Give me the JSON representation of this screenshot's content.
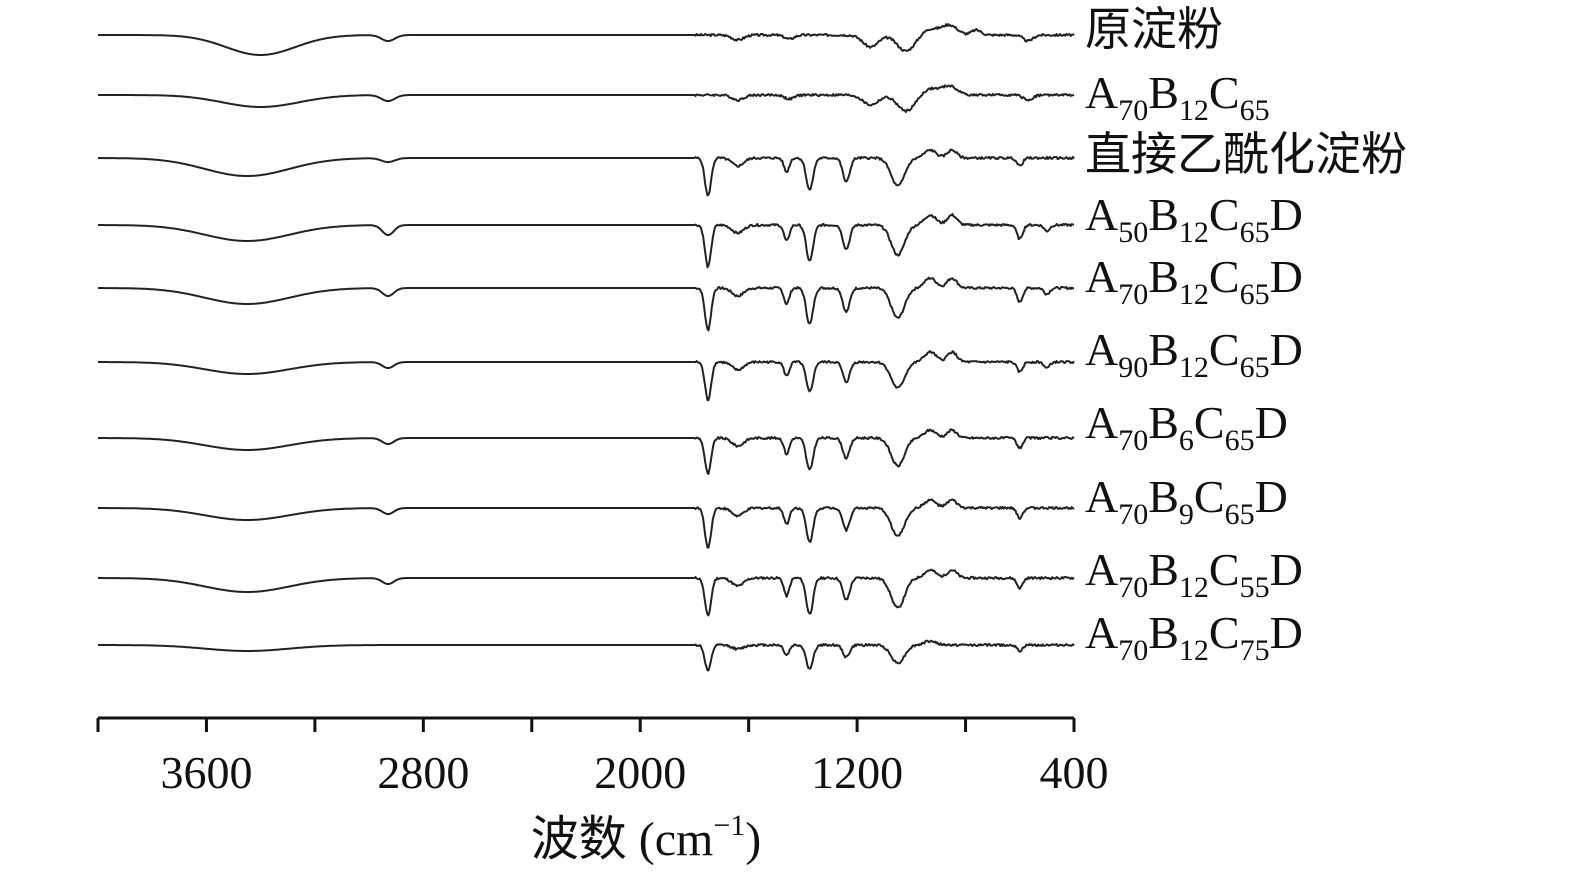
{
  "chart_data": {
    "type": "line",
    "title": "",
    "xlabel": {
      "text": "波数 (cm",
      "sup": "−1",
      "close": ")"
    },
    "ylabel": "",
    "xlim": [
      4000,
      400
    ],
    "x_reversed": true,
    "x_ticks_labeled": [
      3600,
      2800,
      2000,
      1200,
      400
    ],
    "x_ticks_minor": [
      4000,
      3200,
      2400,
      1600,
      800
    ],
    "grid": false,
    "legend": "inline-right",
    "series": [
      {
        "label": [
          {
            "t": "原淀粉"
          }
        ],
        "label_text": "原淀粉",
        "baseline": 0.0,
        "features": [
          [
            3400,
            -20,
            180
          ],
          [
            2930,
            -6,
            35
          ],
          [
            1640,
            -5,
            30
          ],
          [
            1450,
            -4,
            25
          ],
          [
            1150,
            -12,
            40
          ],
          [
            1020,
            -16,
            45
          ],
          [
            930,
            6,
            40
          ],
          [
            860,
            10,
            40
          ],
          [
            760,
            5,
            25
          ],
          [
            570,
            -6,
            25
          ]
        ]
      },
      {
        "label": [
          {
            "t": "A"
          },
          {
            "t": "70",
            "s": "sub"
          },
          {
            "t": "B"
          },
          {
            "t": "12",
            "s": "sub"
          },
          {
            "t": "C"
          },
          {
            "t": "65",
            "s": "sub"
          }
        ],
        "label_text": "A70B12C65",
        "baseline": 0.0,
        "features": [
          [
            3400,
            -12,
            200
          ],
          [
            2930,
            -6,
            35
          ],
          [
            1640,
            -5,
            30
          ],
          [
            1450,
            -4,
            25
          ],
          [
            1150,
            -10,
            40
          ],
          [
            1020,
            -16,
            45
          ],
          [
            930,
            6,
            40
          ],
          [
            860,
            9,
            40
          ],
          [
            570,
            -5,
            25
          ]
        ]
      },
      {
        "label": [
          {
            "t": "直接乙酰化淀粉"
          }
        ],
        "label_text": "直接乙酰化淀粉",
        "baseline": 0.0,
        "features": [
          [
            3450,
            -18,
            220
          ],
          [
            2930,
            -4,
            35
          ],
          [
            1750,
            -38,
            16
          ],
          [
            1640,
            -8,
            30
          ],
          [
            1460,
            -14,
            14
          ],
          [
            1375,
            -32,
            18
          ],
          [
            1240,
            -24,
            18
          ],
          [
            1050,
            -28,
            35
          ],
          [
            930,
            8,
            30
          ],
          [
            850,
            8,
            25
          ],
          [
            600,
            -8,
            15
          ]
        ]
      },
      {
        "label": [
          {
            "t": "A"
          },
          {
            "t": "50",
            "s": "sub"
          },
          {
            "t": "B"
          },
          {
            "t": "12",
            "s": "sub"
          },
          {
            "t": "C"
          },
          {
            "t": "65",
            "s": "sub"
          },
          {
            "t": "D"
          }
        ],
        "label_text": "A50B12C65D",
        "baseline": 0.0,
        "features": [
          [
            3450,
            -16,
            220
          ],
          [
            2930,
            -10,
            30
          ],
          [
            1750,
            -42,
            16
          ],
          [
            1640,
            -8,
            30
          ],
          [
            1460,
            -16,
            14
          ],
          [
            1375,
            -36,
            18
          ],
          [
            1240,
            -24,
            18
          ],
          [
            1050,
            -30,
            35
          ],
          [
            930,
            10,
            30
          ],
          [
            850,
            10,
            25
          ],
          [
            600,
            -14,
            15
          ],
          [
            500,
            -6,
            15
          ]
        ]
      },
      {
        "label": [
          {
            "t": "A"
          },
          {
            "t": "70",
            "s": "sub"
          },
          {
            "t": "B"
          },
          {
            "t": "12",
            "s": "sub"
          },
          {
            "t": "C"
          },
          {
            "t": "65",
            "s": "sub"
          },
          {
            "t": "D"
          }
        ],
        "label_text": "A70B12C65D",
        "baseline": 0.0,
        "features": [
          [
            3450,
            -16,
            220
          ],
          [
            2930,
            -8,
            30
          ],
          [
            1750,
            -42,
            16
          ],
          [
            1640,
            -8,
            30
          ],
          [
            1460,
            -16,
            14
          ],
          [
            1375,
            -36,
            18
          ],
          [
            1240,
            -24,
            18
          ],
          [
            1050,
            -30,
            35
          ],
          [
            930,
            10,
            30
          ],
          [
            850,
            10,
            25
          ],
          [
            600,
            -14,
            15
          ],
          [
            500,
            -6,
            15
          ]
        ]
      },
      {
        "label": [
          {
            "t": "A"
          },
          {
            "t": "90",
            "s": "sub"
          },
          {
            "t": "B"
          },
          {
            "t": "12",
            "s": "sub"
          },
          {
            "t": "C"
          },
          {
            "t": "65",
            "s": "sub"
          },
          {
            "t": "D"
          }
        ],
        "label_text": "A90B12C65D",
        "baseline": 0.0,
        "features": [
          [
            3450,
            -12,
            220
          ],
          [
            2930,
            -6,
            30
          ],
          [
            1750,
            -38,
            16
          ],
          [
            1640,
            -8,
            30
          ],
          [
            1460,
            -14,
            14
          ],
          [
            1375,
            -30,
            18
          ],
          [
            1240,
            -20,
            18
          ],
          [
            1050,
            -26,
            35
          ],
          [
            930,
            10,
            30
          ],
          [
            850,
            10,
            25
          ],
          [
            600,
            -10,
            15
          ],
          [
            500,
            -6,
            15
          ]
        ]
      },
      {
        "label": [
          {
            "t": "A"
          },
          {
            "t": "70",
            "s": "sub"
          },
          {
            "t": "B"
          },
          {
            "t": "6",
            "s": "sub"
          },
          {
            "t": "C"
          },
          {
            "t": "65",
            "s": "sub"
          },
          {
            "t": "D"
          }
        ],
        "label_text": "A70B6C65D",
        "baseline": 0.0,
        "features": [
          [
            3450,
            -12,
            220
          ],
          [
            2930,
            -6,
            30
          ],
          [
            1750,
            -36,
            16
          ],
          [
            1640,
            -8,
            30
          ],
          [
            1460,
            -16,
            14
          ],
          [
            1375,
            -32,
            18
          ],
          [
            1240,
            -20,
            18
          ],
          [
            1050,
            -28,
            35
          ],
          [
            930,
            8,
            30
          ],
          [
            850,
            8,
            25
          ],
          [
            600,
            -10,
            15
          ]
        ]
      },
      {
        "label": [
          {
            "t": "A"
          },
          {
            "t": "70",
            "s": "sub"
          },
          {
            "t": "B"
          },
          {
            "t": "9",
            "s": "sub"
          },
          {
            "t": "C"
          },
          {
            "t": "65",
            "s": "sub"
          },
          {
            "t": "D"
          }
        ],
        "label_text": "A70B9C65D",
        "baseline": 0.0,
        "features": [
          [
            3450,
            -12,
            220
          ],
          [
            2930,
            -6,
            30
          ],
          [
            1750,
            -40,
            16
          ],
          [
            1640,
            -8,
            30
          ],
          [
            1460,
            -16,
            14
          ],
          [
            1375,
            -34,
            18
          ],
          [
            1240,
            -22,
            18
          ],
          [
            1050,
            -28,
            35
          ],
          [
            930,
            8,
            30
          ],
          [
            850,
            8,
            25
          ],
          [
            600,
            -10,
            15
          ]
        ]
      },
      {
        "label": [
          {
            "t": "A"
          },
          {
            "t": "70",
            "s": "sub"
          },
          {
            "t": "B"
          },
          {
            "t": "12",
            "s": "sub"
          },
          {
            "t": "C"
          },
          {
            "t": "55",
            "s": "sub"
          },
          {
            "t": "D"
          }
        ],
        "label_text": "A70B12C55D",
        "baseline": 0.0,
        "features": [
          [
            3450,
            -14,
            220
          ],
          [
            2930,
            -6,
            30
          ],
          [
            1750,
            -38,
            16
          ],
          [
            1640,
            -8,
            30
          ],
          [
            1460,
            -18,
            14
          ],
          [
            1375,
            -36,
            18
          ],
          [
            1240,
            -22,
            18
          ],
          [
            1050,
            -30,
            35
          ],
          [
            930,
            8,
            30
          ],
          [
            850,
            8,
            25
          ],
          [
            600,
            -10,
            15
          ]
        ]
      },
      {
        "label": [
          {
            "t": "A"
          },
          {
            "t": "70",
            "s": "sub"
          },
          {
            "t": "B"
          },
          {
            "t": "12",
            "s": "sub"
          },
          {
            "t": "C"
          },
          {
            "t": "75",
            "s": "sub"
          },
          {
            "t": "D"
          }
        ],
        "label_text": "A70B12C75D",
        "baseline": 0.0,
        "features": [
          [
            3450,
            -6,
            220
          ],
          [
            1750,
            -26,
            16
          ],
          [
            1640,
            -4,
            30
          ],
          [
            1460,
            -10,
            14
          ],
          [
            1375,
            -24,
            18
          ],
          [
            1240,
            -12,
            18
          ],
          [
            1050,
            -18,
            35
          ],
          [
            930,
            4,
            30
          ],
          [
            600,
            -6,
            15
          ]
        ]
      }
    ]
  }
}
